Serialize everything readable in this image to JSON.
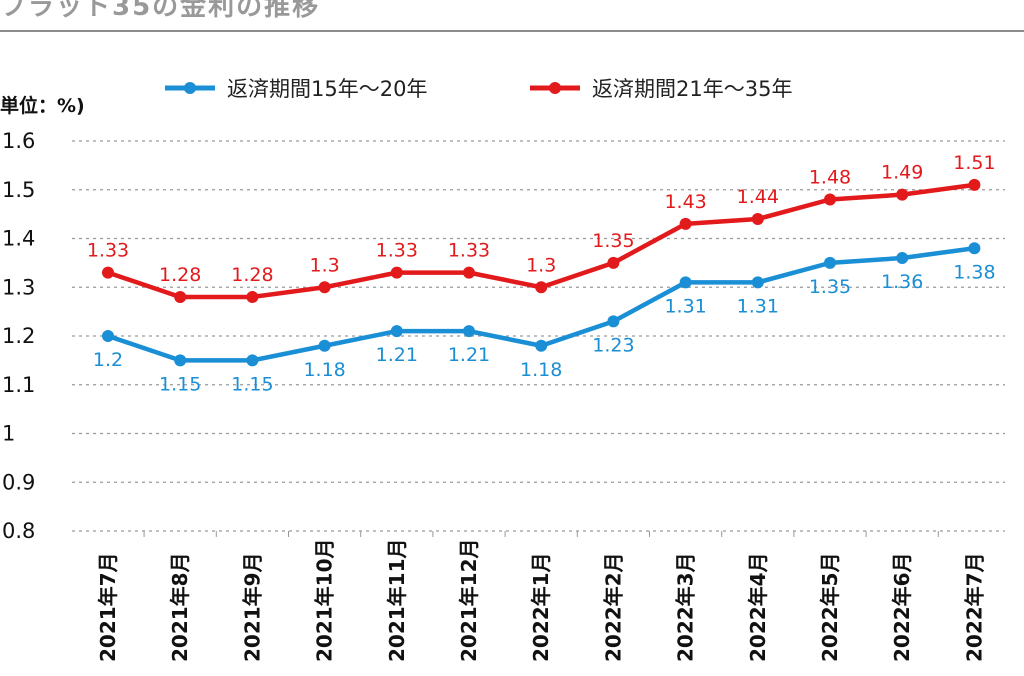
{
  "chart_data": {
    "type": "line",
    "title": "",
    "unit_label": "単位：%)",
    "categories": [
      "2021年7月",
      "2021年8月",
      "2021年9月",
      "2021年10月",
      "2021年11月",
      "2021年12月",
      "2022年1月",
      "2022年2月",
      "2022年3月",
      "2022年4月",
      "2022年5月",
      "2022年6月",
      "2022年7月"
    ],
    "ylim": [
      0.8,
      1.6
    ],
    "yticks": [
      "0.8",
      "0.9",
      "1",
      "1.1",
      "1.2",
      "1.3",
      "1.4",
      "1.5",
      "1.6"
    ],
    "grid": true,
    "series": [
      {
        "name": "返済期間15年～20年",
        "color": "#1a8fd6",
        "values": [
          1.2,
          1.15,
          1.15,
          1.18,
          1.21,
          1.21,
          1.18,
          1.23,
          1.31,
          1.31,
          1.35,
          1.36,
          1.38
        ],
        "labels": [
          "1.2",
          "1.15",
          "1.15",
          "1.18",
          "1.21",
          "1.21",
          "1.18",
          "1.23",
          "1.31",
          "1.31",
          "1.35",
          "1.36",
          "1.38"
        ]
      },
      {
        "name": "返済期間21年～35年",
        "color": "#e31a1c",
        "values": [
          1.33,
          1.28,
          1.28,
          1.3,
          1.33,
          1.33,
          1.3,
          1.35,
          1.43,
          1.44,
          1.48,
          1.49,
          1.51
        ],
        "labels": [
          "1.33",
          "1.28",
          "1.28",
          "1.3",
          "1.33",
          "1.33",
          "1.3",
          "1.35",
          "1.43",
          "1.44",
          "1.48",
          "1.49",
          "1.51"
        ]
      }
    ]
  }
}
